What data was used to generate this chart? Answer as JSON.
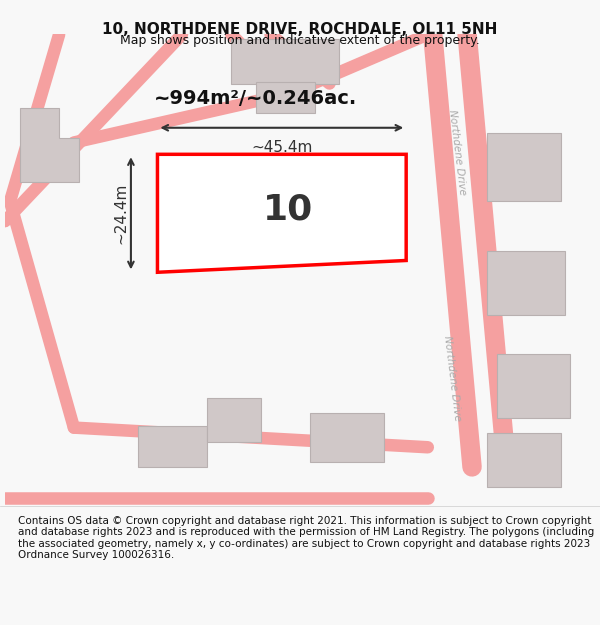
{
  "title": "10, NORTHDENE DRIVE, ROCHDALE, OL11 5NH",
  "subtitle": "Map shows position and indicative extent of the property.",
  "footer": "Contains OS data © Crown copyright and database right 2021. This information is subject to Crown copyright and database rights 2023 and is reproduced with the permission of HM Land Registry. The polygons (including the associated geometry, namely x, y co-ordinates) are subject to Crown copyright and database rights 2023 Ordnance Survey 100026316.",
  "road_color": "#f5a0a0",
  "building_facecolor": "#d0c8c8",
  "building_edgecolor": "#b8b0b0",
  "plot_edgecolor": "#ff0000",
  "plot_facecolor": "#ffffff",
  "dim_color": "#333333",
  "label_area": "~994m²/~0.246ac.",
  "label_width": "~45.4m",
  "label_height": "~24.4m",
  "label_number": "10",
  "street_label": "Northdene Drive",
  "title_fontsize": 11,
  "subtitle_fontsize": 9,
  "footer_fontsize": 7.5
}
